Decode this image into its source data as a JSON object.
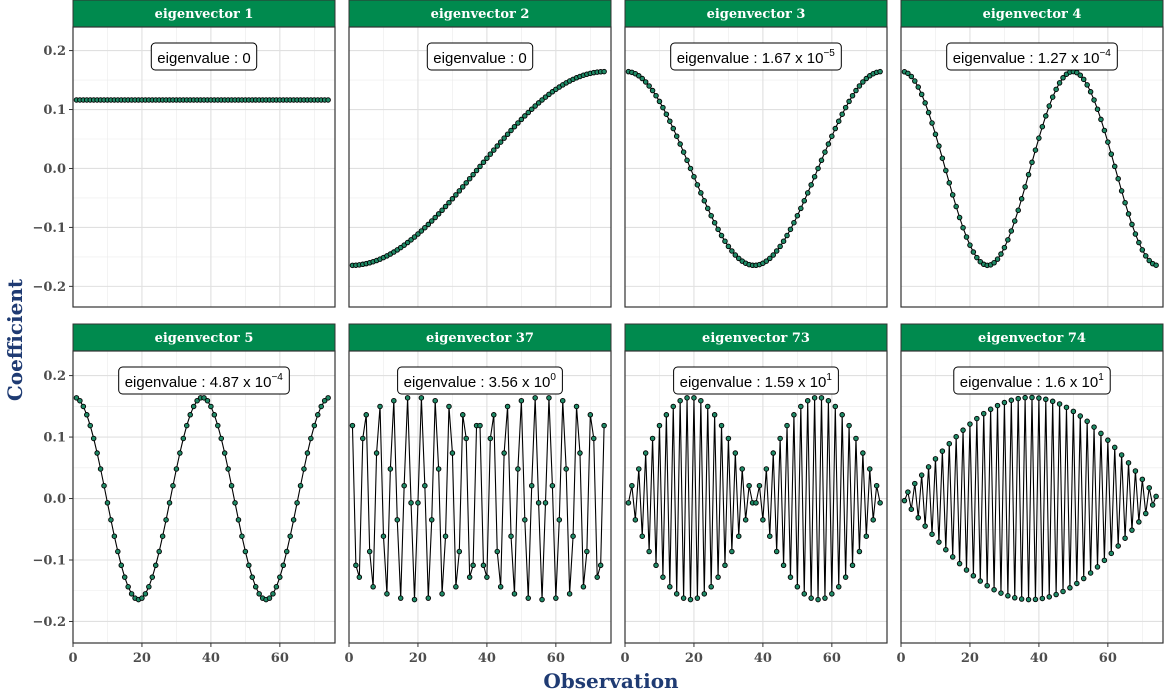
{
  "chart_data": {
    "type": "line",
    "xlabel": "Observation",
    "ylabel": "Coefficient",
    "n": 74,
    "xlim": [
      0,
      76
    ],
    "ylim": [
      -0.235,
      0.24
    ],
    "xticks": [
      0,
      20,
      40,
      60
    ],
    "yticks": [
      -0.2,
      -0.1,
      0.0,
      0.1,
      0.2
    ],
    "ytick_labels": [
      "−0.2",
      "−0.1",
      "0.0",
      "0.1",
      "0.2"
    ],
    "grid": true,
    "point_fill": "#1f8a66",
    "strip_fill": "#008a4e",
    "panels": [
      {
        "title": "eigenvector 1",
        "k": 1,
        "eigenvalue_text": "eigenvalue : 0",
        "eigenvalue_mantissa": "eigenvalue : 0",
        "eigenvalue_exponent": ""
      },
      {
        "title": "eigenvector 2",
        "k": 2,
        "eigenvalue_text": "eigenvalue : 0",
        "eigenvalue_mantissa": "eigenvalue : 0",
        "eigenvalue_exponent": ""
      },
      {
        "title": "eigenvector 3",
        "k": 3,
        "eigenvalue_text": "eigenvalue : 1.67 x 10^-5",
        "eigenvalue_mantissa": "eigenvalue : 1.67 x 10",
        "eigenvalue_exponent": "−5"
      },
      {
        "title": "eigenvector 4",
        "k": 4,
        "eigenvalue_text": "eigenvalue : 1.27 x 10^-4",
        "eigenvalue_mantissa": "eigenvalue : 1.27 x 10",
        "eigenvalue_exponent": "−4"
      },
      {
        "title": "eigenvector 5",
        "k": 5,
        "eigenvalue_text": "eigenvalue : 4.87 x 10^-4",
        "eigenvalue_mantissa": "eigenvalue : 4.87 x 10",
        "eigenvalue_exponent": "−4"
      },
      {
        "title": "eigenvector 37",
        "k": 37,
        "eigenvalue_text": "eigenvalue : 3.56 x 10^0",
        "eigenvalue_mantissa": "eigenvalue : 3.56 x 10",
        "eigenvalue_exponent": "0"
      },
      {
        "title": "eigenvector 73",
        "k": 73,
        "eigenvalue_text": "eigenvalue : 1.59 x 10^1",
        "eigenvalue_mantissa": "eigenvalue : 1.59 x 10",
        "eigenvalue_exponent": "1"
      },
      {
        "title": "eigenvector 74",
        "k": 74,
        "eigenvalue_text": "eigenvalue : 1.6 x 10^1",
        "eigenvalue_mantissa": "eigenvalue : 1.6 x 10",
        "eigenvalue_exponent": "1"
      }
    ]
  }
}
